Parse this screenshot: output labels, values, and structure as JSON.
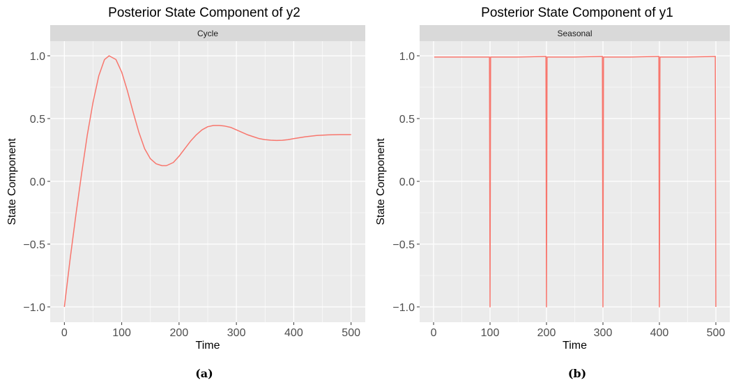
{
  "chart_data": [
    {
      "type": "line",
      "title": "Posterior State Component of y2",
      "facet_label": "Cycle",
      "xlabel": "Time",
      "ylabel": "State Component",
      "caption": "(a)",
      "xlim": [
        0,
        500
      ],
      "ylim": [
        -1.0,
        1.0
      ],
      "x_ticks": [
        0,
        100,
        200,
        300,
        400,
        500
      ],
      "x_tick_labels": [
        "0",
        "100",
        "200",
        "300",
        "400",
        "500"
      ],
      "y_ticks": [
        -1.0,
        -0.5,
        0.0,
        0.5,
        1.0
      ],
      "y_tick_labels": [
        "−1.0",
        "−0.5",
        "0.0",
        "0.5",
        "1.0"
      ],
      "grid": true,
      "line_color": "#F8766D",
      "panel_bg": "#EBEBEB",
      "strip_bg": "#D9D9D9",
      "series": [
        {
          "x": [
            0,
            10,
            20,
            30,
            40,
            50,
            60,
            70,
            78,
            90,
            100,
            110,
            120,
            130,
            140,
            150,
            160,
            170,
            178,
            190,
            200,
            210,
            220,
            230,
            240,
            250,
            260,
            270,
            280,
            290,
            300,
            310,
            320,
            330,
            340,
            350,
            360,
            370,
            380,
            390,
            400,
            420,
            440,
            460,
            480,
            500
          ],
          "values": [
            -1.0,
            -0.62,
            -0.27,
            0.06,
            0.37,
            0.63,
            0.84,
            0.97,
            1.0,
            0.97,
            0.87,
            0.72,
            0.55,
            0.39,
            0.26,
            0.18,
            0.14,
            0.125,
            0.125,
            0.15,
            0.2,
            0.26,
            0.32,
            0.37,
            0.41,
            0.435,
            0.445,
            0.445,
            0.44,
            0.43,
            0.41,
            0.39,
            0.37,
            0.355,
            0.34,
            0.332,
            0.328,
            0.326,
            0.327,
            0.332,
            0.34,
            0.355,
            0.365,
            0.37,
            0.372,
            0.372
          ]
        }
      ]
    },
    {
      "type": "line",
      "title": "Posterior State Component of y1",
      "facet_label": "Seasonal",
      "xlabel": "Time",
      "ylabel": "State Component",
      "caption": "(b)",
      "xlim": [
        0,
        500
      ],
      "ylim": [
        -1.0,
        1.0
      ],
      "x_ticks": [
        0,
        100,
        200,
        300,
        400,
        500
      ],
      "x_tick_labels": [
        "0",
        "100",
        "200",
        "300",
        "400",
        "500"
      ],
      "y_ticks": [
        -1.0,
        -0.5,
        0.0,
        0.5,
        1.0
      ],
      "y_tick_labels": [
        "−1.0",
        "−0.5",
        "0.0",
        "0.5",
        "1.0"
      ],
      "grid": true,
      "line_color": "#F8766D",
      "panel_bg": "#EBEBEB",
      "strip_bg": "#D9D9D9",
      "series": [
        {
          "x": [
            1,
            50,
            98,
            99,
            100,
            101,
            150,
            198,
            199,
            200,
            201,
            250,
            298,
            299,
            300,
            301,
            350,
            398,
            399,
            400,
            401,
            450,
            498,
            499,
            500
          ],
          "values": [
            0.99,
            0.99,
            0.99,
            0.99,
            -1.0,
            0.99,
            0.99,
            0.995,
            0.995,
            -1.0,
            0.99,
            0.99,
            0.995,
            0.995,
            -1.0,
            0.99,
            0.99,
            0.995,
            0.995,
            -1.0,
            0.99,
            0.99,
            0.995,
            0.995,
            -1.0
          ]
        }
      ]
    }
  ]
}
